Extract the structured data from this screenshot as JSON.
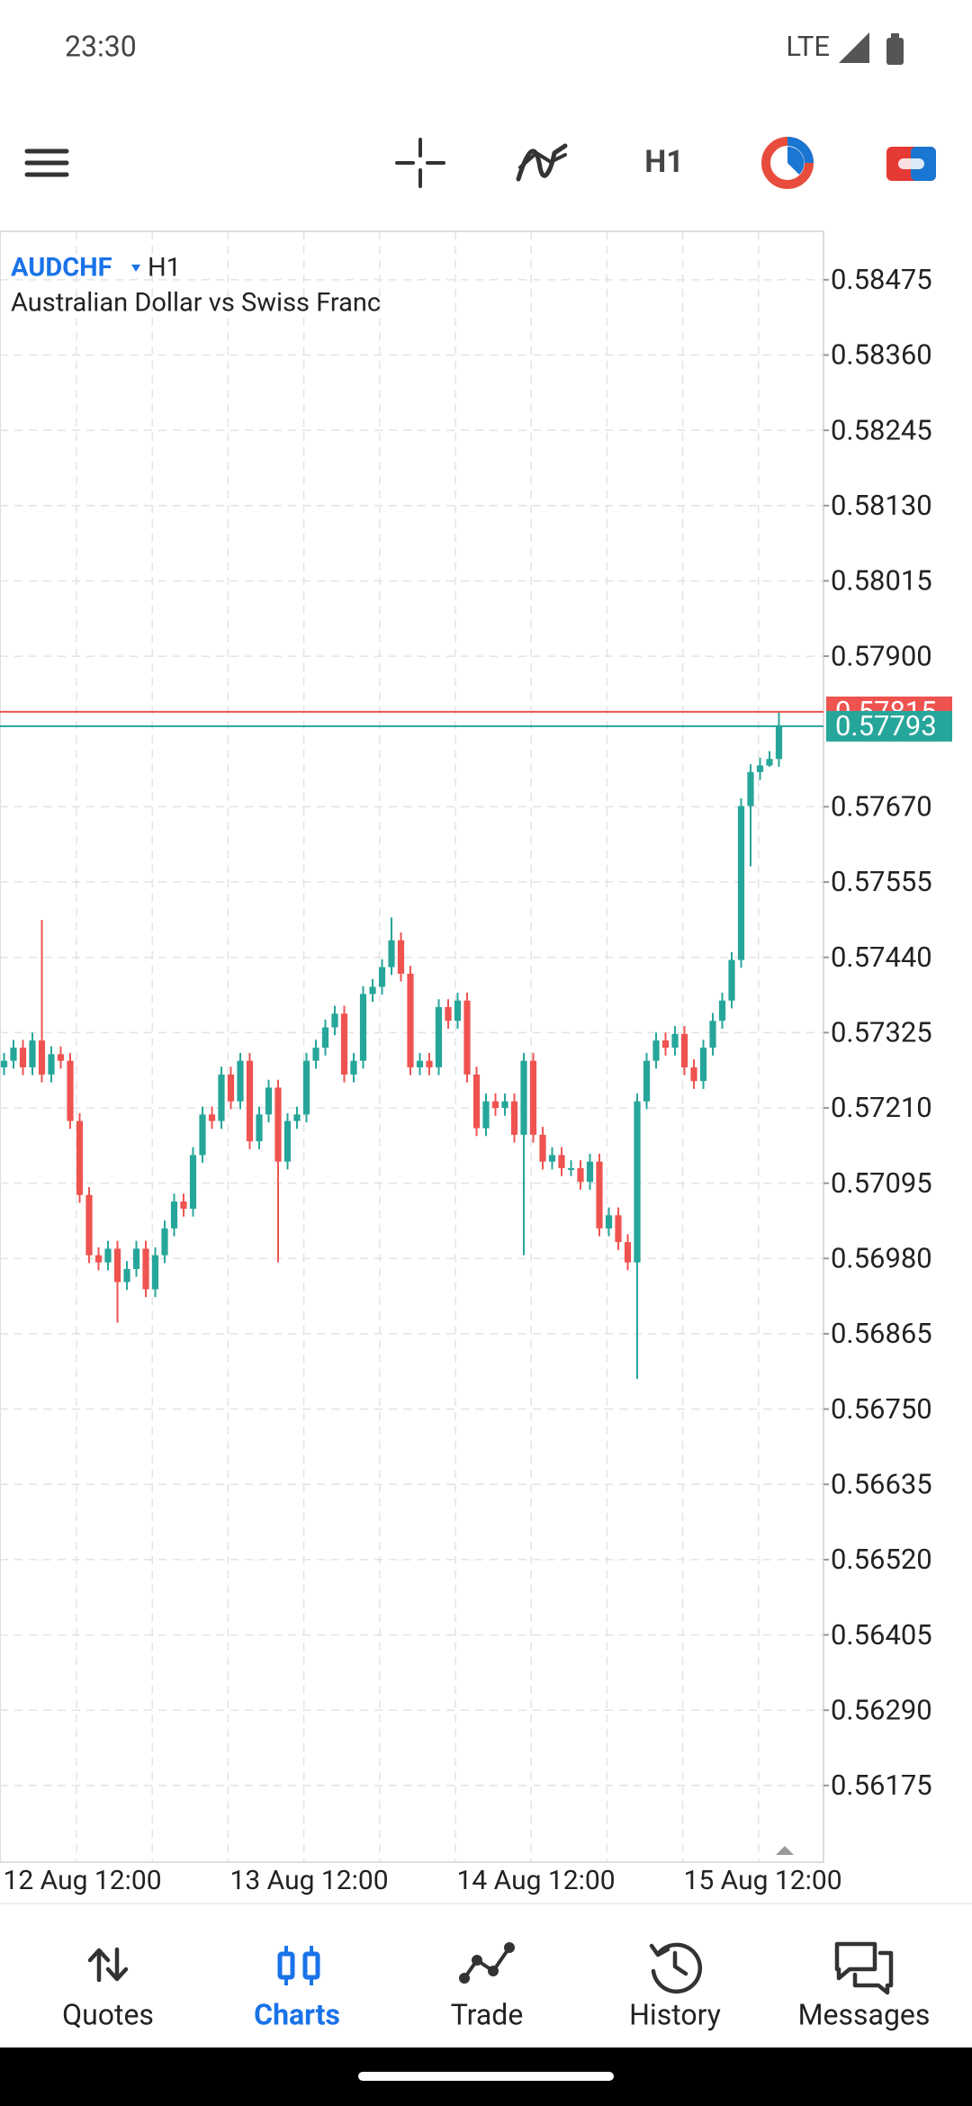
{
  "status_bar": {
    "time": "23:30",
    "network": "LTE"
  },
  "toolbar": {
    "timeframe": "H1"
  },
  "chart_data": {
    "type": "candlestick",
    "symbol": "AUDCHF",
    "timeframe": "H1",
    "subtitle": "Australian Dollar vs Swiss Franc",
    "categories": [
      "12 Aug 12:00",
      null,
      null,
      null,
      null,
      null,
      null,
      null,
      null,
      null,
      null,
      null,
      null,
      null,
      null,
      null,
      null,
      null,
      null,
      null,
      null,
      null,
      null,
      null,
      "13 Aug 12:00",
      null,
      null,
      null,
      null,
      null,
      null,
      null,
      null,
      null,
      null,
      null,
      null,
      null,
      null,
      null,
      null,
      null,
      null,
      null,
      null,
      null,
      null,
      null,
      "14 Aug 12:00",
      null,
      null,
      null,
      null,
      null,
      null,
      null,
      null,
      null,
      null,
      null,
      null,
      null,
      null,
      null,
      null,
      null,
      null,
      null,
      null,
      null,
      null,
      null,
      "15 Aug 12:00",
      null,
      null,
      null,
      null,
      null,
      null,
      null,
      null,
      null,
      null
    ],
    "open": [
      0.57272,
      0.57282,
      0.57302,
      0.57272,
      0.57313,
      0.57261,
      0.57292,
      0.57282,
      0.5719,
      0.57077,
      0.56985,
      0.56974,
      0.56995,
      0.56944,
      0.56964,
      0.56995,
      0.56933,
      0.56985,
      0.57026,
      0.57067,
      0.57056,
      0.57138,
      0.572,
      0.5719,
      0.57261,
      0.5722,
      0.57282,
      0.57159,
      0.572,
      0.57241,
      0.57128,
      0.5719,
      0.572,
      0.57282,
      0.57302,
      0.57333,
      0.57354,
      0.57261,
      0.57282,
      0.57384,
      0.57395,
      0.57425,
      0.57466,
      0.57415,
      0.57272,
      0.57282,
      0.57272,
      0.57364,
      0.57343,
      0.57374,
      0.57261,
      0.57179,
      0.5722,
      0.5721,
      0.5722,
      0.57169,
      0.57282,
      0.57169,
      0.57128,
      0.57138,
      0.57118,
      0.57118,
      0.57097,
      0.57128,
      0.57026,
      0.57046,
      0.57005,
      0.56974,
      0.5722,
      0.57282,
      0.57313,
      0.57302,
      0.57323,
      0.57272,
      0.57251,
      0.57302,
      0.57343,
      0.57374,
      0.57436,
      0.57671,
      0.57723,
      0.57733,
      0.57743
    ],
    "high": [
      0.57294,
      0.57314,
      0.57314,
      0.57325,
      0.57497,
      0.57304,
      0.57304,
      0.57294,
      0.57202,
      0.57089,
      0.56997,
      0.57007,
      0.57007,
      0.56976,
      0.57007,
      0.57007,
      0.56997,
      0.57038,
      0.57079,
      0.57079,
      0.5715,
      0.57212,
      0.57212,
      0.57273,
      0.57273,
      0.57294,
      0.57294,
      0.57212,
      0.57253,
      0.57253,
      0.57202,
      0.57212,
      0.57294,
      0.57314,
      0.57345,
      0.57366,
      0.57366,
      0.57294,
      0.57396,
      0.57407,
      0.57437,
      0.57501,
      0.57478,
      0.57427,
      0.57294,
      0.57294,
      0.57376,
      0.57376,
      0.57386,
      0.57386,
      0.57273,
      0.57232,
      0.57232,
      0.57232,
      0.57232,
      0.57294,
      0.57294,
      0.57181,
      0.5715,
      0.5715,
      0.5713,
      0.5713,
      0.5714,
      0.5714,
      0.57058,
      0.57058,
      0.57017,
      0.57232,
      0.57294,
      0.57325,
      0.57325,
      0.57335,
      0.57335,
      0.57284,
      0.57314,
      0.57355,
      0.57386,
      0.57448,
      0.57683,
      0.57735,
      0.57745,
      0.57755,
      0.57815
    ],
    "low": [
      0.5726,
      0.5727,
      0.5726,
      0.5726,
      0.57249,
      0.57249,
      0.5727,
      0.57178,
      0.57065,
      0.56973,
      0.56962,
      0.56962,
      0.56882,
      0.56932,
      0.56952,
      0.56921,
      0.56921,
      0.56973,
      0.57014,
      0.57044,
      0.57044,
      0.57126,
      0.57178,
      0.57178,
      0.57208,
      0.57208,
      0.57147,
      0.57147,
      0.57188,
      0.56974,
      0.57116,
      0.57178,
      0.57188,
      0.5727,
      0.5729,
      0.57321,
      0.57249,
      0.57249,
      0.5727,
      0.57372,
      0.57383,
      0.57413,
      0.57403,
      0.5726,
      0.5726,
      0.5726,
      0.5726,
      0.57331,
      0.57331,
      0.57249,
      0.57167,
      0.57167,
      0.57198,
      0.57198,
      0.57157,
      0.56985,
      0.57157,
      0.57116,
      0.57116,
      0.57106,
      0.57106,
      0.57085,
      0.57085,
      0.57014,
      0.57014,
      0.56993,
      0.56962,
      0.56796,
      0.57208,
      0.5727,
      0.5729,
      0.5729,
      0.5726,
      0.57239,
      0.57239,
      0.5729,
      0.57331,
      0.57362,
      0.57424,
      0.57579,
      0.57711,
      0.57731,
      0.57731
    ],
    "close": [
      0.57282,
      0.57302,
      0.57272,
      0.57313,
      0.57261,
      0.57292,
      0.57282,
      0.5719,
      0.57077,
      0.56985,
      0.56974,
      0.56995,
      0.56944,
      0.56964,
      0.56995,
      0.56933,
      0.56985,
      0.57026,
      0.57067,
      0.57056,
      0.57138,
      0.572,
      0.5719,
      0.57261,
      0.5722,
      0.57282,
      0.57159,
      0.572,
      0.57241,
      0.57128,
      0.5719,
      0.572,
      0.57282,
      0.57302,
      0.57333,
      0.57354,
      0.57261,
      0.57282,
      0.57384,
      0.57395,
      0.57425,
      0.57466,
      0.57415,
      0.57272,
      0.57282,
      0.57272,
      0.57364,
      0.57343,
      0.57374,
      0.57261,
      0.57179,
      0.5722,
      0.5721,
      0.5722,
      0.57169,
      0.57282,
      0.57169,
      0.57128,
      0.57138,
      0.57118,
      0.57118,
      0.57097,
      0.57128,
      0.57026,
      0.57046,
      0.57005,
      0.56974,
      0.5722,
      0.57282,
      0.57313,
      0.57302,
      0.57323,
      0.57272,
      0.57251,
      0.57302,
      0.57343,
      0.57374,
      0.57436,
      0.57671,
      0.57723,
      0.57733,
      0.57743,
      0.57793
    ],
    "up_color": "#26a69a",
    "down_color": "#ef5350",
    "ylim": [
      0.56058,
      0.58549
    ],
    "yticks": [
      0.58475,
      {
        "value": 0.5836,
        "label": "0.58360"
      },
      0.58245,
      {
        "value": 0.5813,
        "label": "0.58130"
      },
      0.58015,
      {
        "value": 0.579,
        "label": "0.57900"
      },
      {
        "value": 0.5767,
        "label": "0.57670"
      },
      0.57555,
      {
        "value": 0.5744,
        "label": "0.57440"
      },
      0.57325,
      {
        "value": 0.5721,
        "label": "0.57210"
      },
      0.57095,
      {
        "value": 0.5698,
        "label": "0.56980"
      },
      0.56865,
      {
        "value": 0.5675,
        "label": "0.56750"
      },
      0.56635,
      {
        "value": 0.5652,
        "label": "0.56520"
      },
      0.56405,
      {
        "value": 0.5629,
        "label": "0.56290"
      },
      0.56175
    ],
    "grid": true,
    "ask": 0.57815,
    "ask_color": "#ef5350",
    "bid": 0.57793,
    "bid_color": "#26a69a"
  },
  "nav": {
    "items": [
      "Quotes",
      "Charts",
      "Trade",
      "History",
      "Messages"
    ],
    "active": 1
  }
}
